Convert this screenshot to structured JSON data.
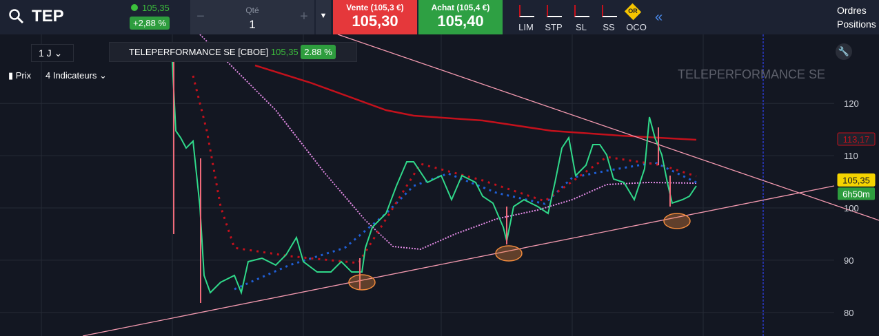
{
  "toolbar": {
    "symbol": "TEP",
    "last": "105,35",
    "change": "+2,88 %",
    "qty_label": "Qté",
    "qty": "1",
    "sell_label": "Vente (105,3 €)",
    "sell_price": "105,30",
    "buy_label": "Achat (105,4 €)",
    "buy_price": "105,40",
    "order_types": [
      "LIM",
      "STP",
      "SL",
      "SS",
      "OCO"
    ],
    "oco_badge": "OR",
    "orders": "Ordres",
    "positions": "Positions"
  },
  "chart": {
    "interval": "1 J",
    "legend_symbol": "TELEPERFORMANCE SE [CBOE]",
    "legend_price": "105,35",
    "legend_change": "2.88 %",
    "price_toggle": "Prix",
    "indicators": "4 Indicateurs",
    "watermark": "TELEPERFORMANCE SE",
    "ylim": [
      75.5,
      133.2
    ],
    "yticks": [
      80,
      90,
      100,
      110,
      120
    ],
    "price_labels": [
      {
        "value": 113.17,
        "label": "113,17"
      },
      {
        "value": 105.35,
        "label": "105,35"
      }
    ],
    "countdown": "6h50m"
  }
}
